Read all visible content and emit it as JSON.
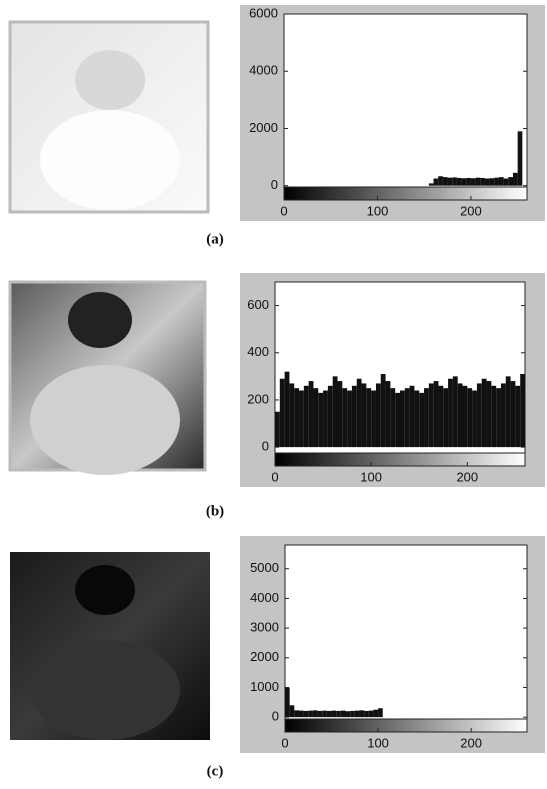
{
  "chart_data": [
    {
      "type": "histogram",
      "caption": "(a)",
      "color": "#111111",
      "bins": [
        0,
        5,
        10,
        15,
        20,
        25,
        30,
        35,
        40,
        45,
        50,
        55,
        60,
        65,
        70,
        75,
        80,
        85,
        90,
        95,
        100,
        105,
        110,
        115,
        120,
        125,
        130,
        135,
        140,
        145,
        150,
        155,
        160,
        165,
        170,
        175,
        180,
        185,
        190,
        195,
        200,
        205,
        210,
        215,
        220,
        225,
        230,
        235,
        240,
        245,
        250,
        255,
        260
      ],
      "values": [
        0,
        0,
        0,
        0,
        0,
        0,
        0,
        0,
        0,
        0,
        0,
        0,
        0,
        0,
        0,
        0,
        0,
        0,
        0,
        0,
        0,
        0,
        0,
        0,
        0,
        0,
        0,
        0,
        0,
        0,
        0,
        80,
        250,
        330,
        300,
        280,
        290,
        270,
        260,
        270,
        260,
        280,
        270,
        250,
        260,
        280,
        300,
        250,
        300,
        450,
        1900,
        0
      ],
      "xlim": [
        0,
        260
      ],
      "ylim": [
        -500,
        6000
      ],
      "xticks": [
        0,
        100,
        200
      ],
      "yticks": [
        0,
        2000,
        4000,
        6000
      ]
    },
    {
      "type": "histogram",
      "caption": "(b)",
      "color": "#111111",
      "bins": [
        0,
        5,
        10,
        15,
        20,
        25,
        30,
        35,
        40,
        45,
        50,
        55,
        60,
        65,
        70,
        75,
        80,
        85,
        90,
        95,
        100,
        105,
        110,
        115,
        120,
        125,
        130,
        135,
        140,
        145,
        150,
        155,
        160,
        165,
        170,
        175,
        180,
        185,
        190,
        195,
        200,
        205,
        210,
        215,
        220,
        225,
        230,
        235,
        240,
        245,
        250,
        255,
        260
      ],
      "values": [
        150,
        290,
        320,
        270,
        250,
        240,
        260,
        280,
        250,
        230,
        240,
        260,
        300,
        280,
        250,
        240,
        260,
        290,
        270,
        250,
        240,
        270,
        310,
        280,
        250,
        230,
        240,
        250,
        260,
        240,
        230,
        250,
        270,
        280,
        260,
        250,
        290,
        300,
        270,
        260,
        250,
        240,
        270,
        290,
        280,
        260,
        250,
        270,
        300,
        280,
        260,
        310
      ],
      "xlim": [
        0,
        260
      ],
      "ylim": [
        -80,
        700
      ],
      "xticks": [
        0,
        100,
        200
      ],
      "yticks": [
        0,
        200,
        400,
        600
      ]
    },
    {
      "type": "histogram",
      "caption": "(c)",
      "color": "#111111",
      "bins": [
        0,
        5,
        10,
        15,
        20,
        25,
        30,
        35,
        40,
        45,
        50,
        55,
        60,
        65,
        70,
        75,
        80,
        85,
        90,
        95,
        100,
        105,
        110,
        115,
        120,
        125,
        130,
        135,
        140,
        145,
        150,
        155,
        160,
        165,
        170,
        175,
        180,
        185,
        190,
        195,
        200,
        205,
        210,
        215,
        220,
        225,
        230,
        235,
        240,
        245,
        250,
        255,
        260
      ],
      "values": [
        1000,
        400,
        230,
        220,
        210,
        220,
        230,
        210,
        220,
        210,
        220,
        210,
        220,
        200,
        210,
        220,
        230,
        210,
        220,
        250,
        300,
        0,
        0,
        0,
        0,
        0,
        0,
        0,
        0,
        0,
        0,
        0,
        0,
        0,
        0,
        0,
        0,
        0,
        0,
        0,
        0,
        0,
        0,
        0,
        0,
        0,
        0,
        0,
        0,
        0,
        0,
        0
      ],
      "xlim": [
        0,
        260
      ],
      "ylim": [
        -500,
        5800
      ],
      "xticks": [
        0,
        100,
        200
      ],
      "yticks": [
        0,
        1000,
        2000,
        3000,
        4000,
        5000
      ]
    }
  ]
}
